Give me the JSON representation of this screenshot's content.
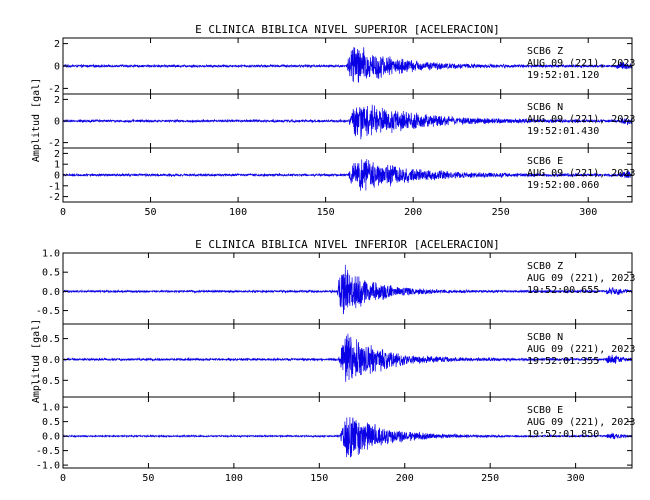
{
  "colors": {
    "trace": "#0a00e6",
    "axis": "#000000"
  },
  "chart_data": [
    {
      "type": "line",
      "title": "E CLINICA BIBLICA NIVEL SUPERIOR [ACELERACION]",
      "ylabel": "Amplitud [gal]",
      "xlim": [
        0,
        325
      ],
      "xticks": [
        0,
        50,
        100,
        150,
        200,
        250,
        300
      ],
      "grid": false,
      "panels": [
        {
          "station": "SCB6",
          "component": "Z",
          "date": "AUG 09 (221), 2023",
          "time": "19:52:01.120",
          "ylim": [
            -2.5,
            2.5
          ],
          "yticks": [
            -2,
            0,
            2
          ],
          "ytick_labels": [
            "-2",
            "0",
            "2"
          ],
          "event_onset": 162,
          "peak_time": 165,
          "peak_amplitude": 2.3,
          "noise_amplitude": 0.12,
          "decay_s": 22,
          "late_onset": 316,
          "late_amplitude": 0.3
        },
        {
          "station": "SCB6",
          "component": "N",
          "date": "AUG 09 (221), 2023",
          "time": "19:52:01.430",
          "ylim": [
            -2.5,
            2.5
          ],
          "yticks": [
            -2,
            0,
            2
          ],
          "ytick_labels": [
            "-2",
            "0",
            "2"
          ],
          "event_onset": 163,
          "peak_time": 168,
          "peak_amplitude": 2.0,
          "noise_amplitude": 0.12,
          "decay_s": 32,
          "late_onset": 318,
          "late_amplitude": 0.3
        },
        {
          "station": "SCB6",
          "component": "E",
          "date": "AUG 09 (221), 2023",
          "time": "19:52:00.060",
          "ylim": [
            -2.5,
            2.5
          ],
          "yticks": [
            -2,
            -1,
            0,
            1,
            2
          ],
          "ytick_labels": [
            "-2",
            "-1",
            "0",
            "1",
            "2"
          ],
          "event_onset": 163,
          "peak_time": 167,
          "peak_amplitude": 1.9,
          "noise_amplitude": 0.12,
          "decay_s": 28,
          "late_onset": 318,
          "late_amplitude": 0.35
        }
      ]
    },
    {
      "type": "line",
      "title": "E CLINICA BIBLICA NIVEL INFERIOR [ACELERACION]",
      "ylabel": "Amplitud [gal]",
      "xlim": [
        0,
        333
      ],
      "xticks": [
        0,
        50,
        100,
        150,
        200,
        250,
        300
      ],
      "grid": false,
      "panels": [
        {
          "station": "SCB0",
          "component": "Z",
          "date": "AUG 09 (221), 2023",
          "time": "19:52:00.655",
          "ylim": [
            -0.85,
            1.0
          ],
          "yticks": [
            -0.5,
            0.0,
            0.5,
            1.0
          ],
          "ytick_labels": [
            "-0.5",
            "0.0",
            "0.5",
            "1.0"
          ],
          "event_onset": 160,
          "peak_time": 163,
          "peak_amplitude": 0.8,
          "noise_amplitude": 0.03,
          "decay_s": 18,
          "late_onset": 318,
          "late_amplitude": 0.12
        },
        {
          "station": "SCB0",
          "component": "N",
          "date": "AUG 09 (221), 2023",
          "time": "19:52:01.355",
          "ylim": [
            -0.9,
            0.85
          ],
          "yticks": [
            -0.5,
            0.0,
            0.5
          ],
          "ytick_labels": [
            "-0.5",
            "0.0",
            "0.5"
          ],
          "event_onset": 161,
          "peak_time": 165,
          "peak_amplitude": 0.78,
          "noise_amplitude": 0.03,
          "decay_s": 20,
          "late_onset": 318,
          "late_amplitude": 0.12
        },
        {
          "station": "SCB0",
          "component": "E",
          "date": "AUG 09 (221), 2023",
          "time": "19:52:01.850",
          "ylim": [
            -1.1,
            1.35
          ],
          "yticks": [
            -1.0,
            -0.5,
            0.0,
            0.5,
            1.0
          ],
          "ytick_labels": [
            "-1.0",
            "-0.5",
            "0.0",
            "0.5",
            "1.0"
          ],
          "event_onset": 162,
          "peak_time": 166,
          "peak_amplitude": 1.0,
          "noise_amplitude": 0.03,
          "decay_s": 20,
          "late_onset": 318,
          "late_amplitude": 0.14
        }
      ]
    }
  ]
}
